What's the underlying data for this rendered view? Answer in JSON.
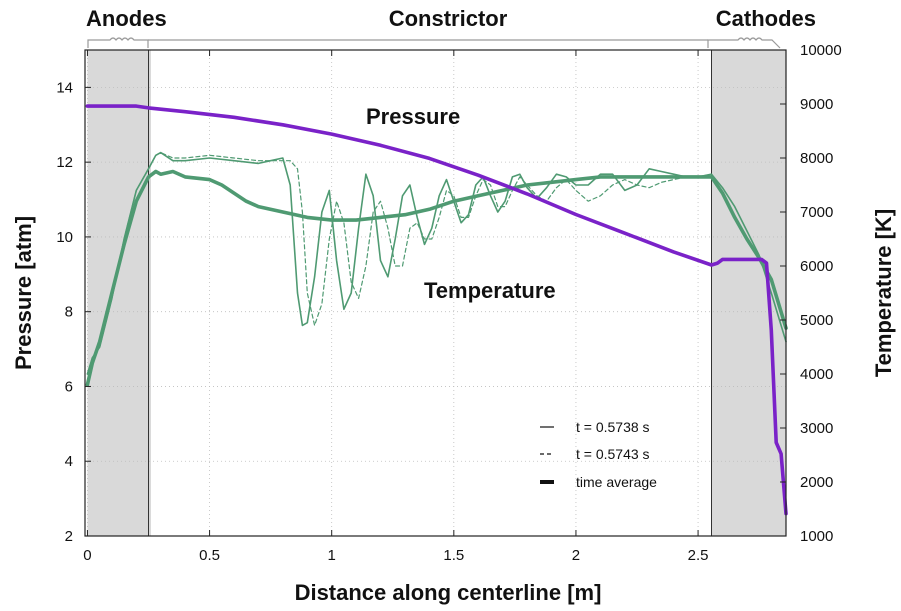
{
  "chart_data": {
    "type": "line",
    "region_labels": [
      "Anodes",
      "Constrictor",
      "Cathodes"
    ],
    "anode_region": [
      0,
      0.25
    ],
    "cathode_region": [
      2.555,
      2.86
    ],
    "xlabel": "Distance along centerline [m]",
    "ylabel_left": "Pressure [atm]",
    "ylabel_right": "Temperature [K]",
    "xlim": [
      -0.01,
      2.86
    ],
    "ylim_left": [
      2,
      15
    ],
    "ylim_right": [
      1000,
      10000
    ],
    "xticks": [
      0,
      0.5,
      1,
      1.5,
      2,
      2.5
    ],
    "xtick_labels": [
      "0",
      "0.5",
      "1",
      "1.5",
      "2",
      "2.5"
    ],
    "yticks_left": [
      2,
      4,
      6,
      8,
      10,
      12,
      14
    ],
    "ytick_labels_left": [
      "2",
      "4",
      "6",
      "8",
      "10",
      "12",
      "14"
    ],
    "yticks_right": [
      1000,
      2000,
      3000,
      4000,
      5000,
      6000,
      7000,
      8000,
      9000,
      10000
    ],
    "ytick_labels_right": [
      "1000",
      "2000",
      "3000",
      "4000",
      "5000",
      "6000",
      "7000",
      "8000",
      "9000",
      "10000"
    ],
    "grid": true,
    "annotations": [
      "Pressure",
      "Temperature"
    ],
    "legend": {
      "placement": "lower-right",
      "entries": [
        "t = 0.5738 s",
        "t = 0.5743 s",
        "time average"
      ]
    },
    "colors": {
      "pressure": "#7a22c8",
      "temperature": "#4f9a72",
      "electrode_region": "#d9d9d9"
    },
    "series": [
      {
        "label_index": 0,
        "axis": "right",
        "style": "solid-thin",
        "x": [
          0,
          0.02,
          0.05,
          0.1,
          0.15,
          0.2,
          0.25,
          0.28,
          0.3,
          0.35,
          0.4,
          0.5,
          0.6,
          0.7,
          0.75,
          0.8,
          0.83,
          0.86,
          0.88,
          0.9,
          0.93,
          0.96,
          0.99,
          1.02,
          1.05,
          1.08,
          1.11,
          1.14,
          1.17,
          1.2,
          1.23,
          1.26,
          1.29,
          1.32,
          1.35,
          1.38,
          1.41,
          1.44,
          1.47,
          1.5,
          1.53,
          1.56,
          1.59,
          1.62,
          1.65,
          1.68,
          1.71,
          1.74,
          1.77,
          1.8,
          1.84,
          1.88,
          1.92,
          1.96,
          2.0,
          2.05,
          2.1,
          2.15,
          2.2,
          2.25,
          2.3,
          2.35,
          2.4,
          2.45,
          2.5,
          2.555,
          2.6,
          2.65,
          2.7,
          2.75,
          2.8,
          2.86
        ],
        "y": [
          4000,
          4300,
          4500,
          5400,
          6500,
          7400,
          7800,
          8050,
          8100,
          7950,
          7950,
          8000,
          7950,
          7900,
          7950,
          8000,
          7500,
          5500,
          4900,
          4950,
          5800,
          7000,
          7400,
          6100,
          5200,
          5500,
          6700,
          7700,
          7300,
          6100,
          5800,
          6500,
          7300,
          7500,
          6900,
          6400,
          6700,
          7300,
          7600,
          7200,
          6800,
          6950,
          7500,
          7650,
          7300,
          7000,
          7200,
          7650,
          7700,
          7450,
          7250,
          7450,
          7700,
          7650,
          7500,
          7500,
          7700,
          7700,
          7400,
          7500,
          7800,
          7750,
          7700,
          7650,
          7650,
          7700,
          7450,
          7100,
          6650,
          6200,
          5500,
          4600
        ]
      },
      {
        "label_index": 1,
        "axis": "right",
        "style": "dashed-thin",
        "x": [
          0,
          0.02,
          0.05,
          0.1,
          0.15,
          0.2,
          0.25,
          0.28,
          0.3,
          0.35,
          0.4,
          0.5,
          0.6,
          0.7,
          0.75,
          0.8,
          0.83,
          0.86,
          0.88,
          0.9,
          0.93,
          0.96,
          0.99,
          1.02,
          1.05,
          1.08,
          1.11,
          1.14,
          1.17,
          1.2,
          1.23,
          1.26,
          1.29,
          1.32,
          1.35,
          1.38,
          1.41,
          1.44,
          1.47,
          1.5,
          1.53,
          1.56,
          1.59,
          1.62,
          1.65,
          1.68,
          1.71,
          1.74,
          1.77,
          1.8,
          1.84,
          1.88,
          1.92,
          1.96,
          2.0,
          2.05,
          2.1,
          2.15,
          2.2,
          2.25,
          2.3,
          2.35,
          2.4,
          2.45,
          2.5,
          2.555
        ],
        "y": [
          4000,
          4300,
          4500,
          5400,
          6500,
          7400,
          7800,
          8050,
          8100,
          8000,
          8000,
          8050,
          8000,
          7950,
          7950,
          7950,
          7950,
          7800,
          7000,
          5500,
          4900,
          5300,
          6500,
          7200,
          6800,
          5700,
          5400,
          6000,
          7000,
          7200,
          6700,
          6000,
          6000,
          6700,
          6800,
          6500,
          6500,
          6900,
          7400,
          7300,
          6900,
          6900,
          7300,
          7600,
          7500,
          7100,
          7100,
          7400,
          7650,
          7500,
          7300,
          7200,
          7450,
          7600,
          7400,
          7200,
          7300,
          7500,
          7600,
          7500,
          7450,
          7550,
          7600,
          7650,
          7650,
          7700
        ]
      },
      {
        "label_index": 2,
        "axis": "right",
        "style": "solid-thick",
        "x": [
          0,
          0.02,
          0.05,
          0.1,
          0.15,
          0.2,
          0.25,
          0.28,
          0.3,
          0.35,
          0.4,
          0.5,
          0.55,
          0.6,
          0.65,
          0.7,
          0.8,
          0.9,
          1.0,
          1.1,
          1.2,
          1.3,
          1.4,
          1.5,
          1.6,
          1.7,
          1.8,
          1.9,
          2.0,
          2.1,
          2.2,
          2.3,
          2.4,
          2.5,
          2.555,
          2.6,
          2.65,
          2.7,
          2.75,
          2.8,
          2.86
        ],
        "y": [
          3800,
          4200,
          4600,
          5500,
          6400,
          7200,
          7650,
          7750,
          7700,
          7750,
          7650,
          7600,
          7500,
          7350,
          7200,
          7100,
          7000,
          6900,
          6850,
          6850,
          6900,
          6950,
          7050,
          7200,
          7300,
          7400,
          7500,
          7550,
          7600,
          7650,
          7650,
          7650,
          7650,
          7650,
          7650,
          7350,
          6900,
          6500,
          6150,
          5750,
          4850
        ]
      },
      {
        "label": "Pressure",
        "axis": "left",
        "style": "solid-thick",
        "x": [
          0,
          0.1,
          0.2,
          0.25,
          0.4,
          0.6,
          0.8,
          1.0,
          1.2,
          1.4,
          1.6,
          1.8,
          2.0,
          2.2,
          2.4,
          2.555,
          2.58,
          2.6,
          2.7,
          2.76,
          2.78,
          2.8,
          2.82,
          2.84,
          2.86
        ],
        "y": [
          13.5,
          13.5,
          13.5,
          13.45,
          13.35,
          13.2,
          13.0,
          12.75,
          12.45,
          12.1,
          11.65,
          11.15,
          10.6,
          10.1,
          9.6,
          9.25,
          9.3,
          9.4,
          9.4,
          9.4,
          9.3,
          7.5,
          4.5,
          4.2,
          2.6
        ]
      }
    ]
  }
}
